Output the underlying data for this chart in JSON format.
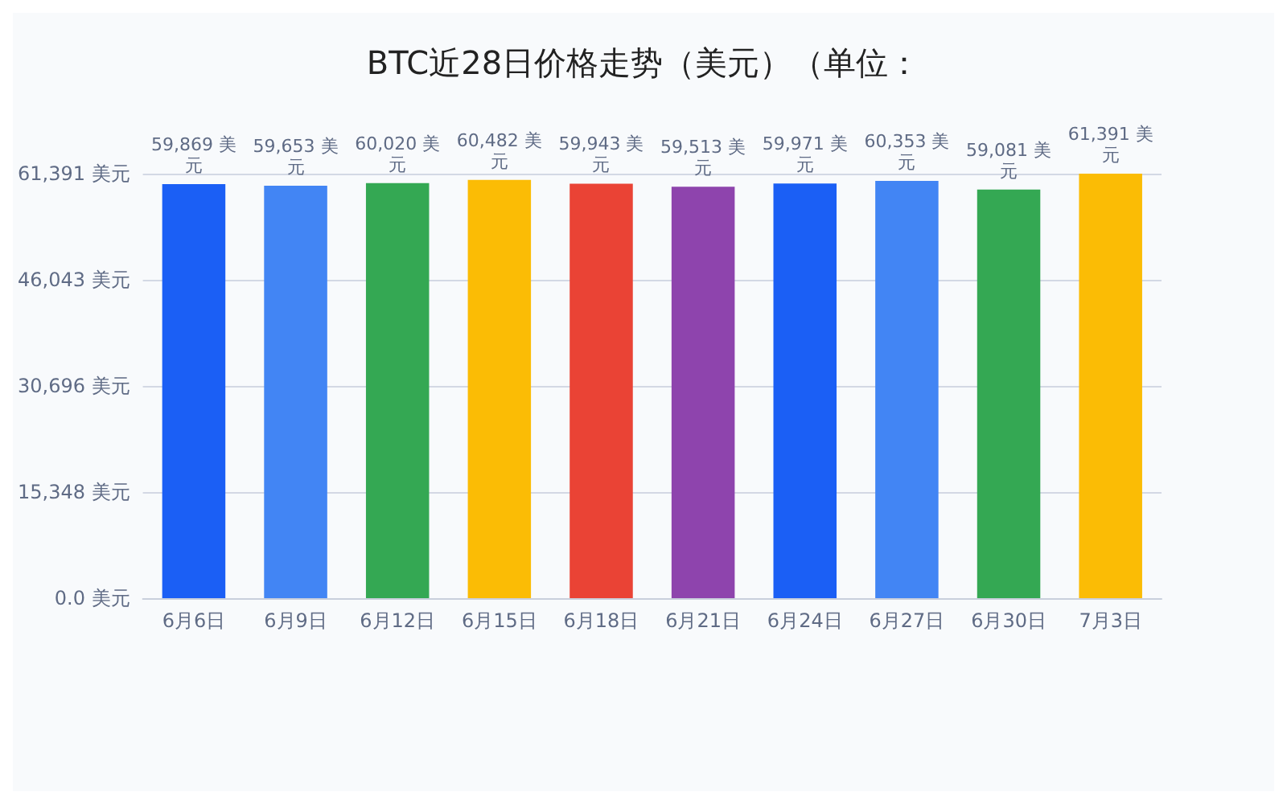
{
  "chart_data": {
    "type": "bar",
    "title": "BTC近28日价格走势（美元）（单位：",
    "categories": [
      "6月6日",
      "6月9日",
      "6月12日",
      "6月15日",
      "6月18日",
      "6月21日",
      "6月24日",
      "6月27日",
      "6月30日",
      "7月3日"
    ],
    "values": [
      59869,
      59653,
      60020,
      60482,
      59943,
      59513,
      59971,
      60353,
      59081,
      61391
    ],
    "colors": [
      "#1b5ff5",
      "#4285f4",
      "#34a853",
      "#fbbc05",
      "#ea4335",
      "#8e44ad",
      "#1b5ff5",
      "#4285f4",
      "#34a853",
      "#fbbc05"
    ],
    "value_labels": [
      "59,869 美元",
      "59,653 美元",
      "60,020 美元",
      "60,482 美元",
      "59,943 美元",
      "59,513 美元",
      "59,971 美元",
      "60,353 美元",
      "59,081 美元",
      "61,391 美元"
    ],
    "ylim": [
      0,
      61391
    ],
    "yticks": [
      {
        "value": 0,
        "label": "0.0 美元"
      },
      {
        "value": 15348,
        "label": "15,348 美元"
      },
      {
        "value": 30696,
        "label": "30,696 美元"
      },
      {
        "value": 46043,
        "label": "46,043 美元"
      },
      {
        "value": 61391,
        "label": "61,391 美元"
      }
    ],
    "grid": true
  }
}
